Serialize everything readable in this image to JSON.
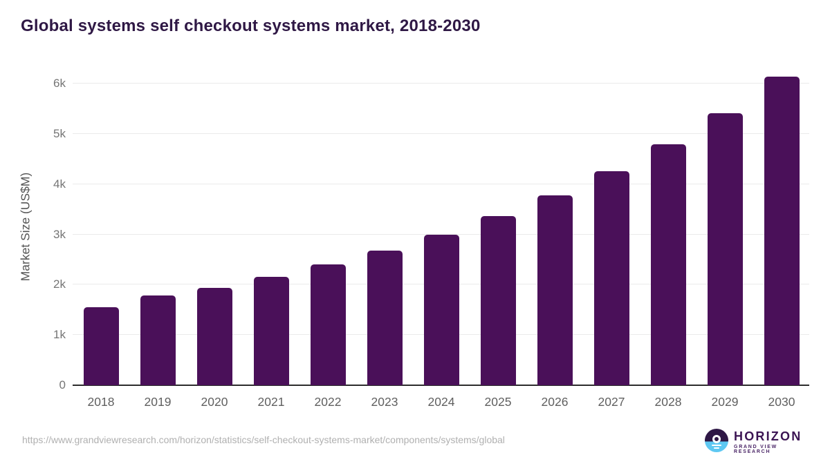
{
  "title": "Global systems self checkout systems market, 2018-2030",
  "chart_data": {
    "type": "bar",
    "categories": [
      "2018",
      "2019",
      "2020",
      "2021",
      "2022",
      "2023",
      "2024",
      "2025",
      "2026",
      "2027",
      "2028",
      "2029",
      "2030"
    ],
    "values": [
      1550,
      1780,
      1940,
      2150,
      2400,
      2680,
      3000,
      3360,
      3780,
      4260,
      4800,
      5410,
      6140
    ],
    "title": "Global systems self checkout systems market, 2018-2030",
    "xlabel": "",
    "ylabel": "Market Size (US$M)",
    "ylim": [
      0,
      6320
    ],
    "yticks": [
      0,
      1000,
      2000,
      3000,
      4000,
      5000,
      6000
    ],
    "ytick_labels": [
      "0",
      "1k",
      "2k",
      "3k",
      "4k",
      "5k",
      "6k"
    ],
    "grid": true,
    "legend": false,
    "bar_color": "#4a1059"
  },
  "footer": {
    "source_url": "https://www.grandviewresearch.com/horizon/statistics/self-checkout-systems-market/components/systems/global"
  },
  "brand": {
    "name": "HORIZON",
    "tagline": "GRAND VIEW RESEARCH"
  },
  "colors": {
    "bar": "#4a1059",
    "title_text": "#2f1845",
    "y_tick_text": "#757575",
    "x_tick_text": "#5f5f5f",
    "gridline": "#eaeaea",
    "baseline": "#2b2b2b",
    "url_text": "#b0b0b0",
    "logo_purple": "#2e1745",
    "logo_blue": "#5ec8f2"
  }
}
